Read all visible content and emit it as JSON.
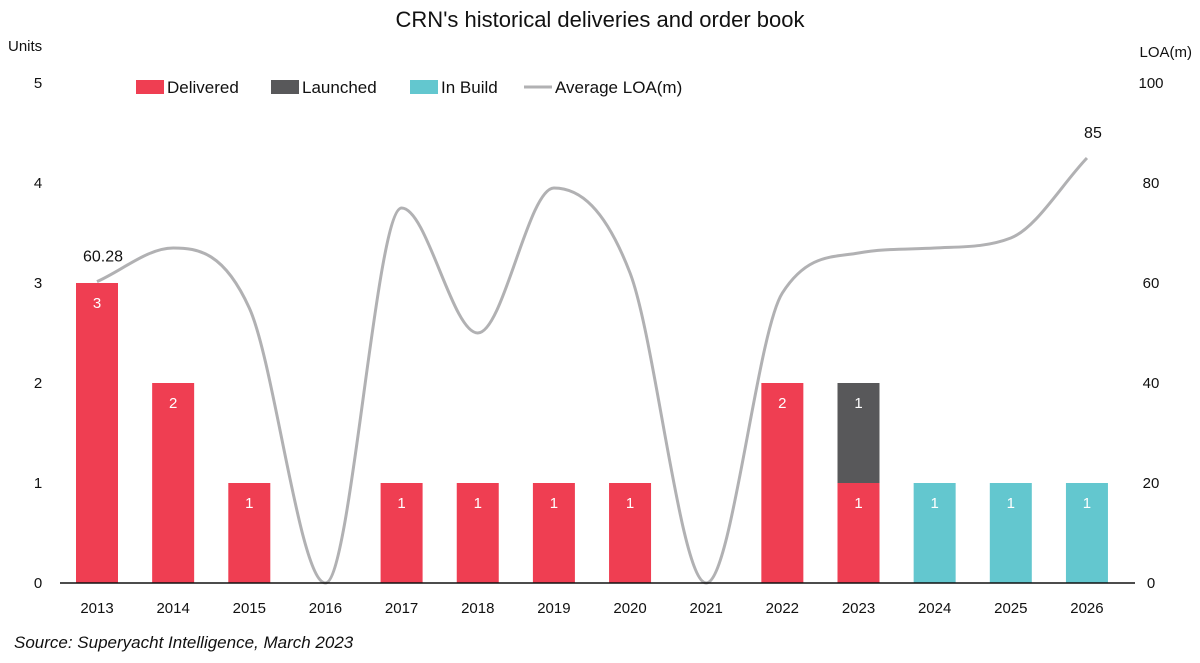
{
  "chart_data": {
    "type": "bar",
    "title": "CRN's historical deliveries and order book",
    "ylabel": "Units",
    "y2label": "LOA(m)",
    "ylim": [
      0,
      5
    ],
    "y2lim": [
      0,
      100
    ],
    "yticks": [
      0,
      1,
      2,
      3,
      4,
      5
    ],
    "y2ticks": [
      0,
      20,
      40,
      60,
      80,
      100
    ],
    "stacked": true,
    "categories": [
      "2013",
      "2014",
      "2015",
      "2016",
      "2017",
      "2018",
      "2019",
      "2020",
      "2021",
      "2022",
      "2023",
      "2024",
      "2025",
      "2026"
    ],
    "series": [
      {
        "name": "Delivered",
        "color": "#ef3e52",
        "values": [
          3,
          2,
          1,
          0,
          1,
          1,
          1,
          1,
          0,
          2,
          1,
          0,
          0,
          0
        ]
      },
      {
        "name": "Launched",
        "color": "#58585a",
        "values": [
          0,
          0,
          0,
          0,
          0,
          0,
          0,
          0,
          0,
          0,
          1,
          0,
          0,
          0
        ]
      },
      {
        "name": "In Build",
        "color": "#63c7cf",
        "values": [
          0,
          0,
          0,
          0,
          0,
          0,
          0,
          0,
          0,
          0,
          0,
          1,
          1,
          1
        ]
      }
    ],
    "line": {
      "name": "Average LOA(m)",
      "color": "#b1b1b3",
      "axis": "right",
      "values": [
        60.28,
        67,
        55,
        0,
        75,
        50,
        79,
        62,
        0,
        58,
        66,
        67,
        69,
        85
      ]
    },
    "line_labels": [
      {
        "index": 0,
        "text": "60.28"
      },
      {
        "index": 13,
        "text": "85"
      }
    ],
    "legend_position": "top",
    "grid": false
  },
  "source": "Source: Superyacht Intelligence, March 2023"
}
